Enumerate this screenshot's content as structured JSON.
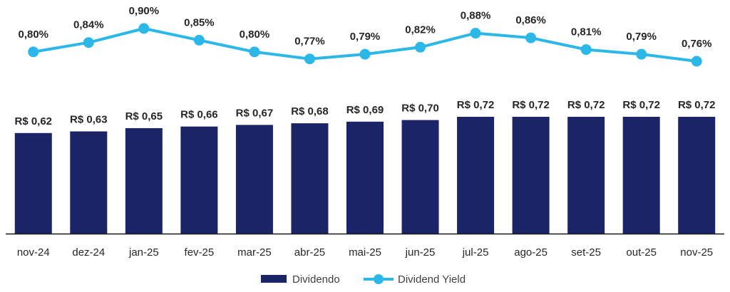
{
  "chart_data": {
    "type": "bar+line",
    "categories": [
      "nov-24",
      "dez-24",
      "jan-25",
      "fev-25",
      "mar-25",
      "abr-25",
      "mai-25",
      "jun-25",
      "jul-25",
      "ago-25",
      "set-25",
      "out-25",
      "nov-25"
    ],
    "series": [
      {
        "name": "Dividendo",
        "type": "bar",
        "values": [
          0.62,
          0.63,
          0.65,
          0.66,
          0.67,
          0.68,
          0.69,
          0.7,
          0.72,
          0.72,
          0.72,
          0.72,
          0.72
        ],
        "labels": [
          "R$ 0,62",
          "R$ 0,63",
          "R$ 0,65",
          "R$ 0,66",
          "R$ 0,67",
          "R$ 0,68",
          "R$ 0,69",
          "R$ 0,70",
          "R$ 0,72",
          "R$ 0,72",
          "R$ 0,72",
          "R$ 0,72",
          "R$ 0,72"
        ],
        "color": "#1b2467"
      },
      {
        "name": "Dividend Yield",
        "type": "line",
        "values": [
          0.8,
          0.84,
          0.9,
          0.85,
          0.8,
          0.77,
          0.79,
          0.82,
          0.88,
          0.86,
          0.81,
          0.79,
          0.76
        ],
        "labels": [
          "0,80%",
          "0,84%",
          "0,90%",
          "0,85%",
          "0,80%",
          "0,77%",
          "0,79%",
          "0,82%",
          "0,88%",
          "0,86%",
          "0,81%",
          "0,79%",
          "0,76%"
        ],
        "color": "#2bb8e8"
      }
    ],
    "legend": {
      "position": "bottom",
      "items": [
        "Dividendo",
        "Dividend Yield"
      ]
    }
  }
}
